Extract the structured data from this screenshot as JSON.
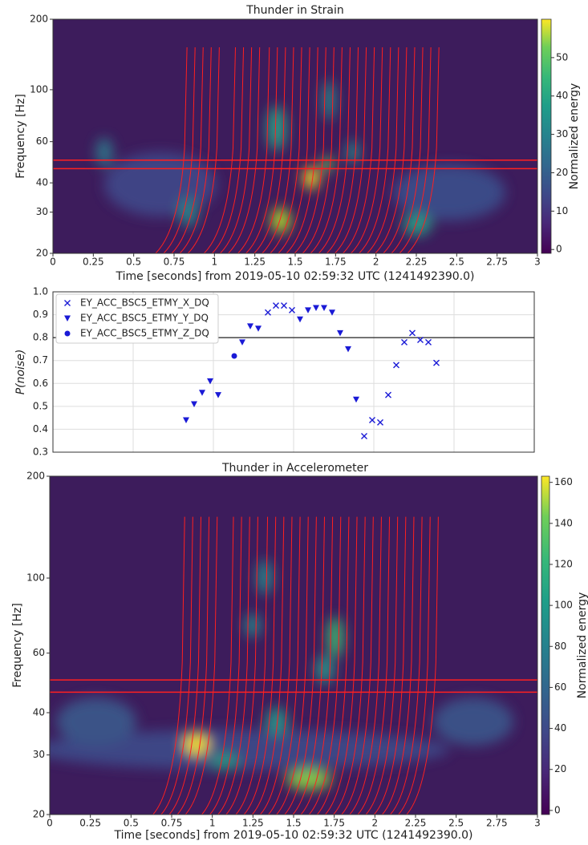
{
  "chart_data": [
    {
      "type": "spectrogram",
      "title": "Thunder in Strain",
      "xlabel": "Time [seconds] from 2019-05-10 02:59:32 UTC (1241492390.0)",
      "ylabel": "Frequency [Hz]",
      "colorbar_label": "Normalized energy",
      "xlim": [
        0,
        3
      ],
      "xticks": [
        0,
        0.25,
        0.5,
        0.75,
        1,
        1.25,
        1.5,
        1.75,
        2,
        2.25,
        2.5,
        2.75,
        3
      ],
      "ylim": [
        20,
        200
      ],
      "yticks": [
        20,
        30,
        40,
        60,
        100,
        200
      ],
      "log_y": true,
      "clim": [
        -1,
        60
      ],
      "cticks": [
        0,
        10,
        20,
        30,
        40,
        50
      ],
      "hlines": [
        46,
        50
      ],
      "line_color": "#ff2020"
    },
    {
      "type": "scatter",
      "ylabel": "P(noise)",
      "xlim": [
        0,
        3
      ],
      "xticks": [
        0,
        0.5,
        1,
        1.5,
        2,
        2.5,
        3
      ],
      "xtick_labels": false,
      "ylim": [
        0.3,
        1.0
      ],
      "yticks": [
        0.3,
        0.4,
        0.5,
        0.6,
        0.7,
        0.8,
        0.9,
        {
          "value": 1.0,
          "label": "1.0"
        }
      ],
      "grid": true,
      "hline": 0.8,
      "legend": "upper left",
      "series": [
        {
          "name": "EY_ACC_BSC5_ETMY_X_DQ",
          "marker": "x",
          "color": "#1a1ad6",
          "x": [
            1.34,
            1.39,
            1.44,
            1.49,
            1.94,
            1.99,
            2.04,
            2.09,
            2.14,
            2.19,
            2.24,
            2.29,
            2.34,
            2.39
          ],
          "values": [
            0.91,
            0.94,
            0.94,
            0.92,
            0.37,
            0.44,
            0.43,
            0.55,
            0.68,
            0.78,
            0.82,
            0.79,
            0.78,
            0.69
          ]
        },
        {
          "name": "EY_ACC_BSC5_ETMY_Y_DQ",
          "marker": "v",
          "color": "#1a1ad6",
          "x": [
            0.83,
            0.88,
            0.93,
            0.98,
            1.03,
            1.18,
            1.23,
            1.28,
            1.54,
            1.59,
            1.64,
            1.69,
            1.74,
            1.79,
            1.84,
            1.89
          ],
          "values": [
            0.44,
            0.51,
            0.56,
            0.61,
            0.55,
            0.78,
            0.85,
            0.84,
            0.88,
            0.92,
            0.93,
            0.93,
            0.91,
            0.82,
            0.75,
            0.53
          ]
        },
        {
          "name": "EY_ACC_BSC5_ETMY_Z_DQ",
          "marker": "o",
          "color": "#1a1ad6",
          "x": [
            1.13
          ],
          "values": [
            0.72
          ]
        }
      ]
    },
    {
      "type": "spectrogram",
      "title": "Thunder in Accelerometer",
      "xlabel": "Time [seconds] from 2019-05-10 02:59:32 UTC (1241492390.0)",
      "ylabel": "Frequency [Hz]",
      "colorbar_label": "Normalized energy",
      "xlim": [
        0,
        3
      ],
      "xticks": [
        0,
        0.25,
        0.5,
        0.75,
        1,
        1.25,
        1.5,
        1.75,
        2,
        2.25,
        2.5,
        2.75,
        3
      ],
      "ylim": [
        20,
        200
      ],
      "yticks": [
        20,
        30,
        40,
        60,
        100,
        200
      ],
      "log_y": true,
      "clim": [
        -2,
        163
      ],
      "cticks": [
        0,
        20,
        40,
        60,
        80,
        100,
        120,
        140,
        160
      ],
      "hlines": [
        46,
        50
      ],
      "line_color": "#ff2020"
    }
  ]
}
